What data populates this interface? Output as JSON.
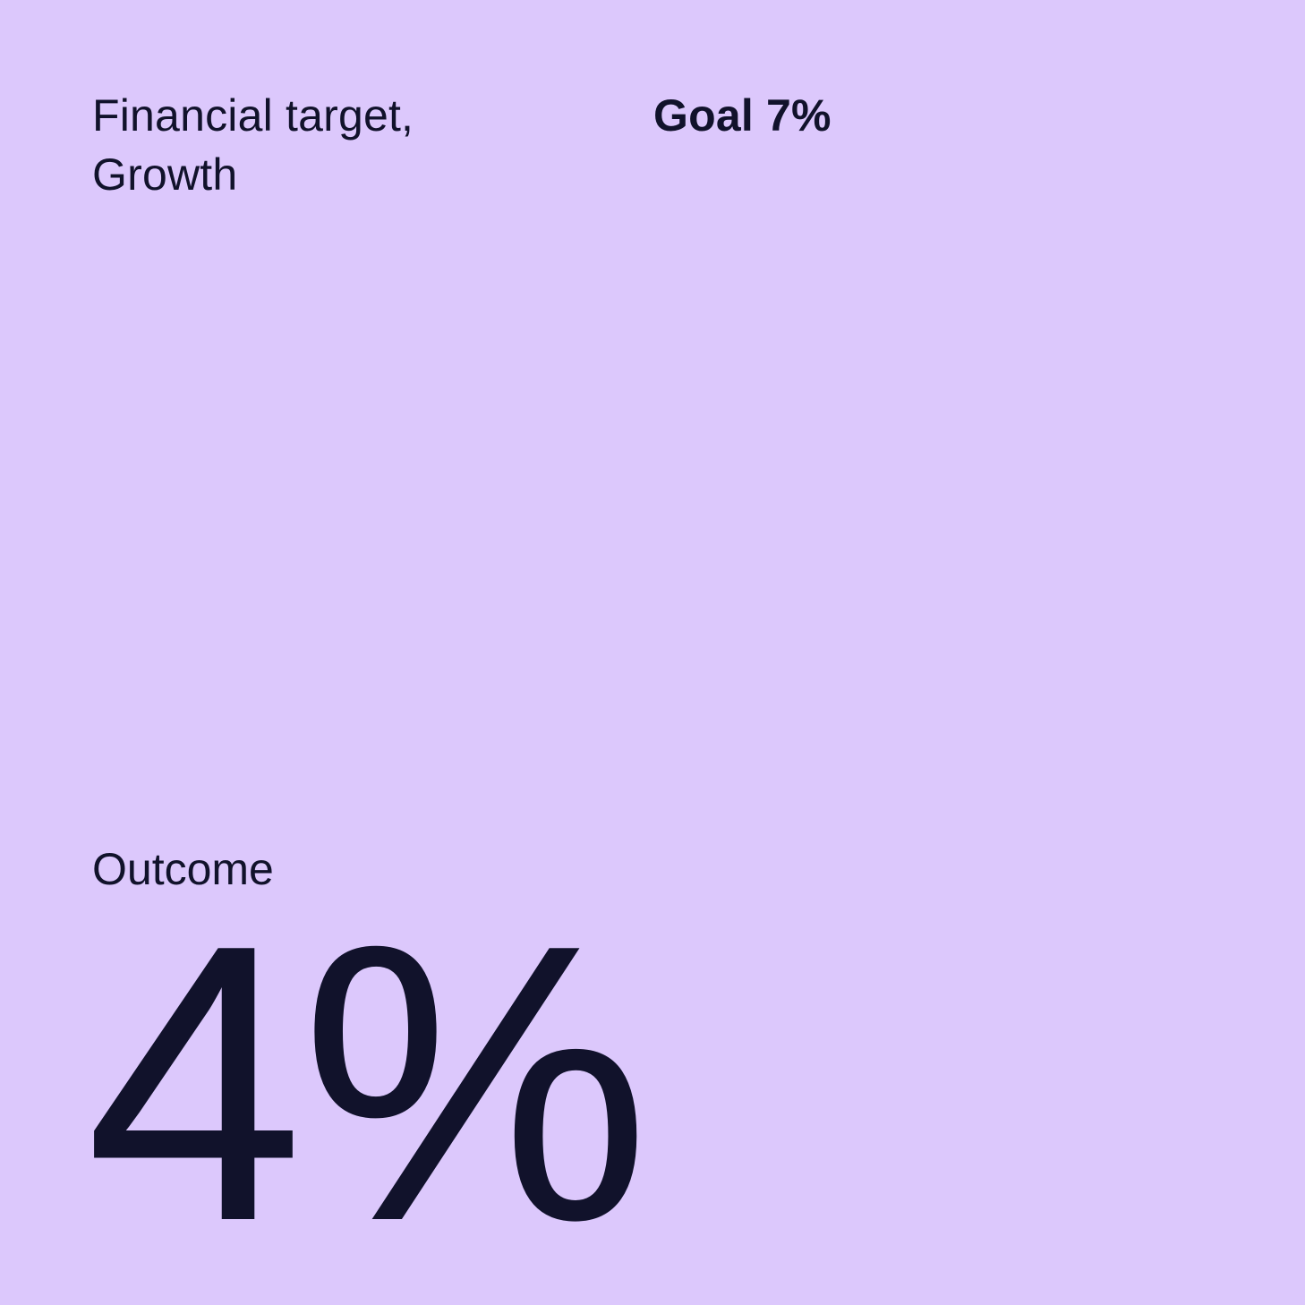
{
  "colors": {
    "background": "#dcc8fc",
    "text": "#11122b"
  },
  "header": {
    "title_line1": "Financial target,",
    "title_line2": "Growth",
    "goal_label": "Goal 7%"
  },
  "outcome": {
    "label": "Outcome",
    "value": "4%"
  },
  "chart_data": {
    "type": "table",
    "title": "Financial target, Growth",
    "categories": [
      "Goal",
      "Outcome"
    ],
    "values": [
      7,
      4
    ],
    "unit": "%",
    "notes": "Big-number KPI card: goal 7%, outcome 4%"
  }
}
